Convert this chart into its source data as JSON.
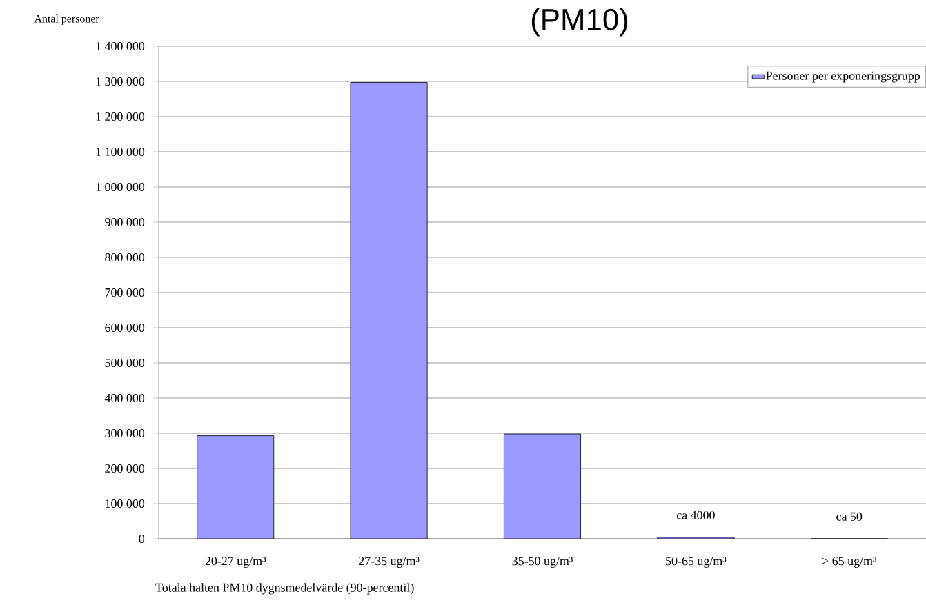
{
  "chart_data": {
    "type": "bar",
    "title": "(PM10)",
    "xlabel": "Totala halten PM10 dygnsmedelvärde (90-percentil)",
    "ylabel": "Antal personer",
    "categories": [
      "20-27 ug/m³",
      "27-35 ug/m³",
      "35-50 ug/m³",
      "50-65 ug/m³",
      "> 65 ug/m³"
    ],
    "series": [
      {
        "name": "Personer per exponeringsgrupp",
        "color": "#9999ff",
        "values": [
          293000,
          1297000,
          298000,
          4000,
          50
        ],
        "value_labels": [
          null,
          null,
          null,
          "ca 4000",
          "ca 50"
        ]
      }
    ],
    "ylim": [
      0,
      1400000
    ],
    "yticks": [
      0,
      {
        "value": 100000,
        "label": "100 000"
      },
      {
        "value": 200000,
        "label": "200 000"
      },
      {
        "value": 300000,
        "label": "300 000"
      },
      {
        "value": 400000,
        "label": "400 000"
      },
      {
        "value": 500000,
        "label": "500 000"
      },
      {
        "value": 600000,
        "label": "600 000"
      },
      {
        "value": 700000,
        "label": "700 000"
      },
      {
        "value": 800000,
        "label": "800 000"
      },
      {
        "value": 900000,
        "label": "900 000"
      },
      {
        "value": 1000000,
        "label": "1 000 000"
      },
      {
        "value": 1100000,
        "label": "1 100 000"
      },
      {
        "value": 1200000,
        "label": "1 200 000"
      },
      {
        "value": 1300000,
        "label": "1 300 000"
      },
      {
        "value": 1400000,
        "label": "1 400 000"
      }
    ],
    "grid": "y",
    "legend": "top right"
  }
}
